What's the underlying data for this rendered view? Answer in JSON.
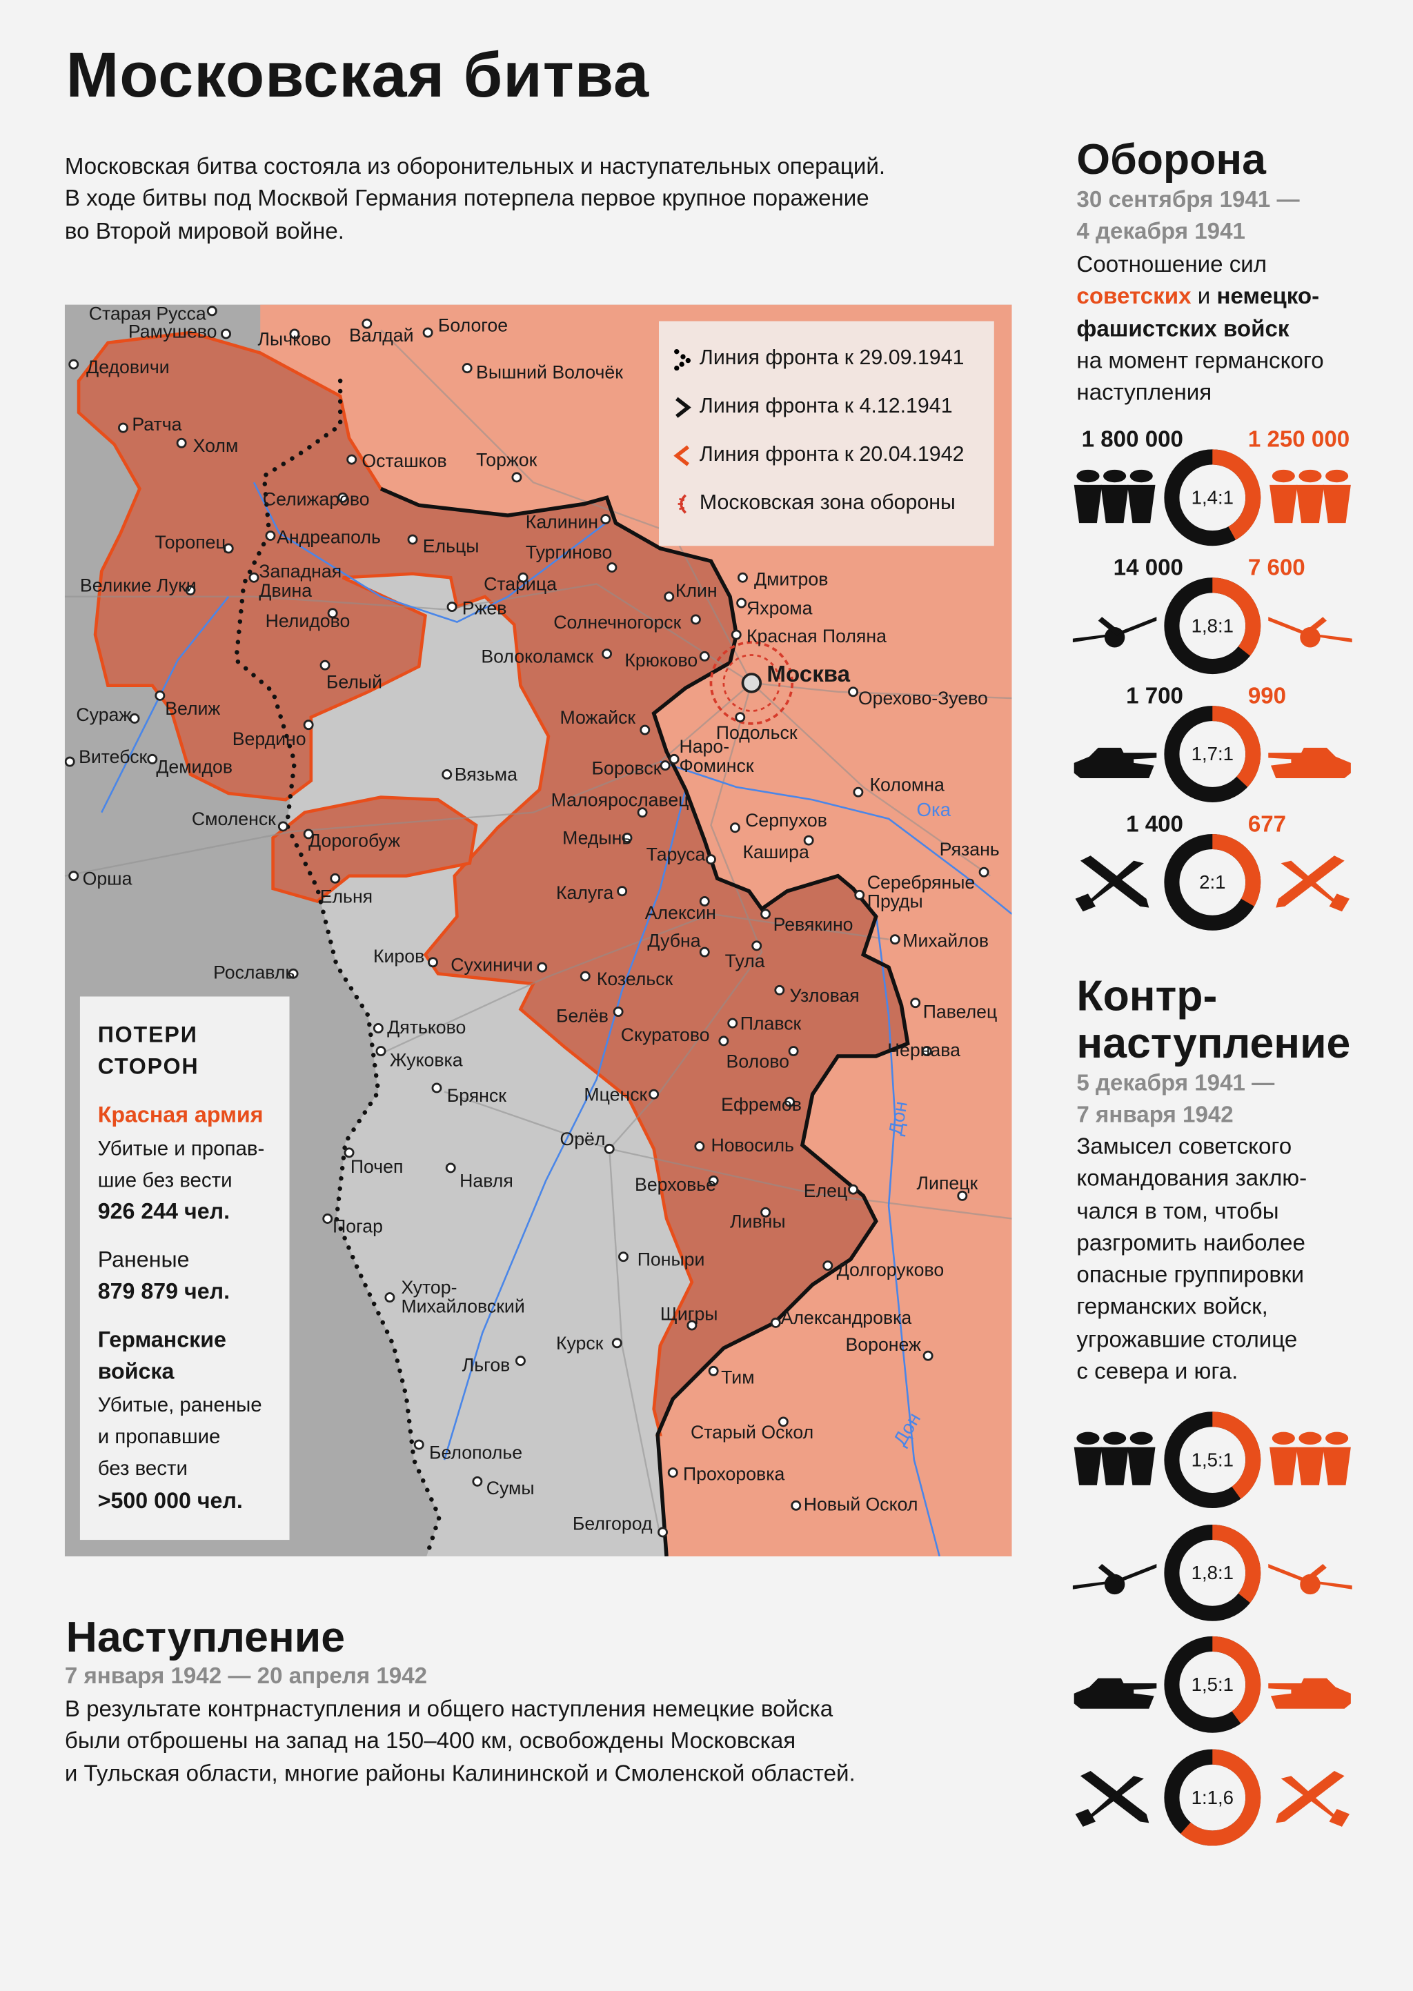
{
  "title": "Московская битва",
  "intro": [
    "Московская битва состояла из оборонительных и наступательных операций.",
    "В ходе битвы под Москвой Германия потерпела первое крупное поражение",
    "во Второй мировой войне."
  ],
  "colors": {
    "soviet": "#e84e1b",
    "german": "#111111",
    "soviet_territory": "#efa086",
    "liberated": "#c8705a",
    "occupied": "#c8c8c8",
    "occupied_west": "#aaaaaa",
    "river": "#4a86e8"
  },
  "legend": [
    {
      "icon": "dotted-chevron-icon",
      "label": "Линия фронта к 29.09.1941"
    },
    {
      "icon": "black-chevron-icon",
      "label": "Линия фронта к 4.12.1941"
    },
    {
      "icon": "orange-chevron-icon",
      "label": "Линия фронта к 20.04.1942"
    },
    {
      "icon": "defense-zone-icon",
      "label": "Московская зона обороны"
    }
  ],
  "map": {
    "capital": "Москва",
    "rivers": [
      "Ока",
      "Дон",
      "Дон"
    ],
    "cities": [
      "Старая Русса",
      "Рамушево",
      "Лычково",
      "Валдай",
      "Бологое",
      "Вышний Волочёк",
      "Дедовичи",
      "Ратча",
      "Холм",
      "Осташков",
      "Торжок",
      "Селижарово",
      "Калинин",
      "Андреаполь",
      "Ельцы",
      "Торопец",
      "Тургиново",
      "Западная Двина",
      "Великие Луки",
      "Старица",
      "Клин",
      "Дмитров",
      "Яхрома",
      "Ржев",
      "Нелидово",
      "Солнечногорск",
      "Красная Поляна",
      "Волоколамск",
      "Крюково",
      "Белый",
      "Орехово-Зуево",
      "Сураж",
      "Велиж",
      "Можайск",
      "Наро-Фоминск",
      "Подольск",
      "Вердино",
      "Витебск",
      "Демидов",
      "Боровск",
      "Вязьма",
      "Коломна",
      "Малоярославец",
      "Смоленск",
      "Серпухов",
      "Кашира",
      "Медынь",
      "Дорогобуж",
      "Рязань",
      "Таруса",
      "Орша",
      "Серебряные Пруды",
      "Калуга",
      "Ельня",
      "Алексин",
      "Ревякино",
      "Михайлов",
      "Дубна",
      "Тула",
      "Киров",
      "Сухиничи",
      "Козельск",
      "Рославль",
      "Узловая",
      "Павелец",
      "Белёв",
      "Дятьково",
      "Плавск",
      "Скуратово",
      "Чернава",
      "Жуковка",
      "Волово",
      "Брянск",
      "Мценск",
      "Ефремов",
      "Орёл",
      "Почеп",
      "Новосиль",
      "Навля",
      "Верховье",
      "Елец",
      "Липецк",
      "Погар",
      "Ливны",
      "Поныри",
      "Долгоруково",
      "Хутор-Михайловский",
      "Щигры",
      "Александровка",
      "Курск",
      "Воронеж",
      "Льгов",
      "Тим",
      "Старый Оскол",
      "Белополье",
      "Прохоровка",
      "Сумы",
      "Новый Оскол",
      "Белгород"
    ]
  },
  "losses": {
    "title": [
      "ПОТЕРИ",
      "СТОРОН"
    ],
    "red_army": "Красная армия",
    "red_killed_label": [
      "Убитые и пропав-",
      "шие без вести"
    ],
    "red_killed": "926 244 чел.",
    "red_wounded_label": "Раненые",
    "red_wounded": "879 879 чел.",
    "german": [
      "Германские",
      "войска"
    ],
    "german_label": [
      "Убитые, раненые",
      "и пропавшие",
      "без вести"
    ],
    "german_total": ">500 000 чел."
  },
  "defense": {
    "title": "Оборона",
    "dates": [
      "30 сентября 1941 —",
      "4 декабря 1941"
    ],
    "desc_1": "Соотношение сил",
    "desc_soviet": "советских",
    "desc_and": " и ",
    "desc_german_1": "немецко-",
    "desc_german_2": "фашистских войск",
    "desc_3": "на момент германского",
    "desc_4": "наступления",
    "stats": [
      {
        "icon": "soldiers-icon",
        "german": "1 800 000",
        "soviet": "1 250 000",
        "ratio": "1,4:1",
        "soviet_share": 0.42
      },
      {
        "icon": "artillery-icon",
        "german": "14 000",
        "soviet": "7 600",
        "ratio": "1,8:1",
        "soviet_share": 0.357
      },
      {
        "icon": "tank-icon",
        "german": "1 700",
        "soviet": "990",
        "ratio": "1,7:1",
        "soviet_share": 0.37
      },
      {
        "icon": "plane-icon",
        "german": "1 400",
        "soviet": "677",
        "ratio": "2:1",
        "soviet_share": 0.333
      }
    ]
  },
  "counter": {
    "title": [
      "Контр-",
      "наступление"
    ],
    "dates": [
      "5 декабря 1941 —",
      "7 января 1942"
    ],
    "desc": [
      "Замысел советского",
      "командования заклю-",
      "чался в том, чтобы",
      "разгромить наиболее",
      "опасные группировки",
      "германских войск,",
      "угрожавшие столице",
      "с севера и юга."
    ],
    "stats": [
      {
        "icon": "soldiers-icon",
        "ratio": "1,5:1",
        "soviet_share": 0.4
      },
      {
        "icon": "artillery-icon",
        "ratio": "1,8:1",
        "soviet_share": 0.357
      },
      {
        "icon": "tank-icon",
        "ratio": "1,5:1",
        "soviet_share": 0.4
      },
      {
        "icon": "plane-icon",
        "ratio": "1:1,6",
        "soviet_share": 0.615
      }
    ]
  },
  "offensive": {
    "title": "Наступление",
    "dates": "7 января 1942 — 20 апреля 1942",
    "desc": [
      "В результате контрнаступления и общего наступления немецкие войска",
      "были отброшены на запад на 150–400 км, освобождены Московская",
      "и Тульская области, многие районы Калининской и Смоленской областей."
    ]
  }
}
